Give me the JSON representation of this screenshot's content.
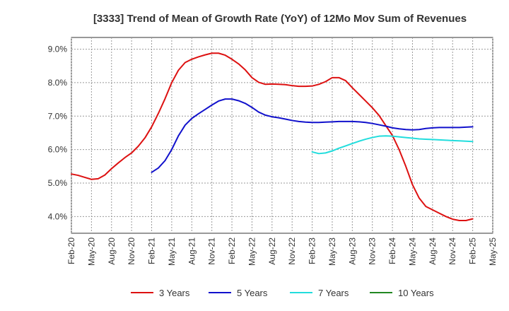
{
  "chart_data": {
    "type": "line",
    "title": "[3333]  Trend of Mean of Growth Rate (YoY) of 12Mo Mov Sum of Revenues",
    "xlabel": "",
    "ylabel": "",
    "ylim": [
      3.5,
      9.35
    ],
    "ytick_values": [
      4.0,
      5.0,
      6.0,
      7.0,
      8.0,
      9.0
    ],
    "ytick_labels": [
      "4.0%",
      "5.0%",
      "6.0%",
      "7.0%",
      "8.0%",
      "9.0%"
    ],
    "xlim": [
      0,
      63
    ],
    "xtick_labels": [
      "Feb-20",
      "May-20",
      "Aug-20",
      "Nov-20",
      "Feb-21",
      "May-21",
      "Aug-21",
      "Nov-21",
      "Feb-22",
      "May-22",
      "Aug-22",
      "Nov-22",
      "Feb-23",
      "May-23",
      "Aug-23",
      "Nov-23",
      "Feb-24",
      "May-24",
      "Aug-24",
      "Nov-24",
      "Feb-25",
      "May-25"
    ],
    "grid": true,
    "legend_position": "bottom",
    "series": [
      {
        "name": "3 Years",
        "color": "#dd1111",
        "x": [
          0,
          1,
          2,
          3,
          4,
          5,
          6,
          7,
          8,
          9,
          10,
          11,
          12,
          13,
          14,
          15,
          16,
          17,
          18,
          19,
          20,
          21,
          22,
          23,
          24,
          25,
          26,
          27,
          28,
          29,
          30,
          31,
          32,
          33,
          34,
          35,
          36,
          37,
          38,
          39,
          40,
          41,
          42,
          43,
          44,
          45,
          46,
          47,
          48,
          49,
          50,
          51,
          52,
          53,
          54,
          55,
          56,
          57,
          58,
          59,
          60
        ],
        "values": [
          5.27,
          5.23,
          5.17,
          5.11,
          5.13,
          5.24,
          5.43,
          5.6,
          5.76,
          5.9,
          6.1,
          6.35,
          6.68,
          7.08,
          7.52,
          8.0,
          8.37,
          8.6,
          8.7,
          8.77,
          8.83,
          8.88,
          8.88,
          8.82,
          8.7,
          8.56,
          8.38,
          8.15,
          8.01,
          7.95,
          7.96,
          7.95,
          7.94,
          7.91,
          7.89,
          7.89,
          7.9,
          7.95,
          8.03,
          8.15,
          8.15,
          8.06,
          7.85,
          7.65,
          7.45,
          7.25,
          7.02,
          6.72,
          6.42,
          6.0,
          5.5,
          4.95,
          4.55,
          4.3,
          4.2,
          4.1,
          4.0,
          3.92,
          3.88,
          3.88,
          3.93
        ]
      },
      {
        "name": "5 Years",
        "color": "#1111cc",
        "x": [
          12,
          13,
          14,
          15,
          16,
          17,
          18,
          19,
          20,
          21,
          22,
          23,
          24,
          25,
          26,
          27,
          28,
          29,
          30,
          31,
          32,
          33,
          34,
          35,
          36,
          37,
          38,
          39,
          40,
          41,
          42,
          43,
          44,
          45,
          46,
          47,
          48,
          49,
          50,
          51,
          52,
          53,
          54,
          55,
          56,
          57,
          58,
          59,
          60
        ],
        "values": [
          5.32,
          5.45,
          5.67,
          6.0,
          6.41,
          6.73,
          6.93,
          7.07,
          7.2,
          7.33,
          7.45,
          7.51,
          7.51,
          7.46,
          7.38,
          7.26,
          7.12,
          7.03,
          6.98,
          6.95,
          6.91,
          6.87,
          6.84,
          6.82,
          6.81,
          6.81,
          6.82,
          6.83,
          6.84,
          6.84,
          6.84,
          6.83,
          6.81,
          6.78,
          6.74,
          6.7,
          6.65,
          6.62,
          6.6,
          6.59,
          6.6,
          6.63,
          6.65,
          6.66,
          6.66,
          6.66,
          6.66,
          6.67,
          6.68
        ]
      },
      {
        "name": "7 Years",
        "color": "#22dddd",
        "x": [
          36,
          37,
          38,
          39,
          40,
          41,
          42,
          43,
          44,
          45,
          46,
          47,
          48,
          49,
          50,
          51,
          52,
          53,
          54,
          55,
          56,
          57,
          58,
          59,
          60
        ],
        "values": [
          5.93,
          5.88,
          5.9,
          5.96,
          6.04,
          6.11,
          6.18,
          6.25,
          6.31,
          6.36,
          6.4,
          6.41,
          6.4,
          6.38,
          6.36,
          6.34,
          6.32,
          6.31,
          6.3,
          6.29,
          6.28,
          6.27,
          6.26,
          6.25,
          6.24
        ]
      },
      {
        "name": "10 Years",
        "color": "#228822",
        "x": [],
        "values": []
      }
    ]
  }
}
